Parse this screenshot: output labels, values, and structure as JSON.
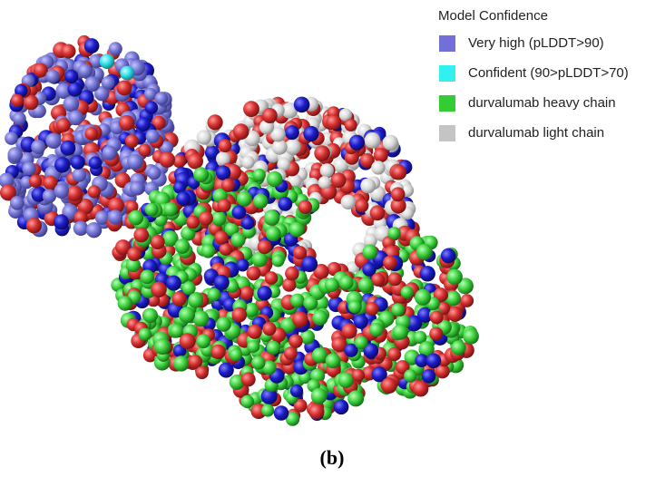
{
  "legend": {
    "title": "Model Confidence",
    "items": [
      {
        "label": "Very high (pLDDT>90)",
        "color": "#7070d8"
      },
      {
        "label": "Confident (90>pLDDT>70)",
        "color": "#33f0f0"
      },
      {
        "label": "durvalumab heavy chain",
        "color": "#33cc33"
      },
      {
        "label": "durvalumab light chain",
        "color": "#c4c4c4"
      }
    ]
  },
  "caption": "(b)"
}
